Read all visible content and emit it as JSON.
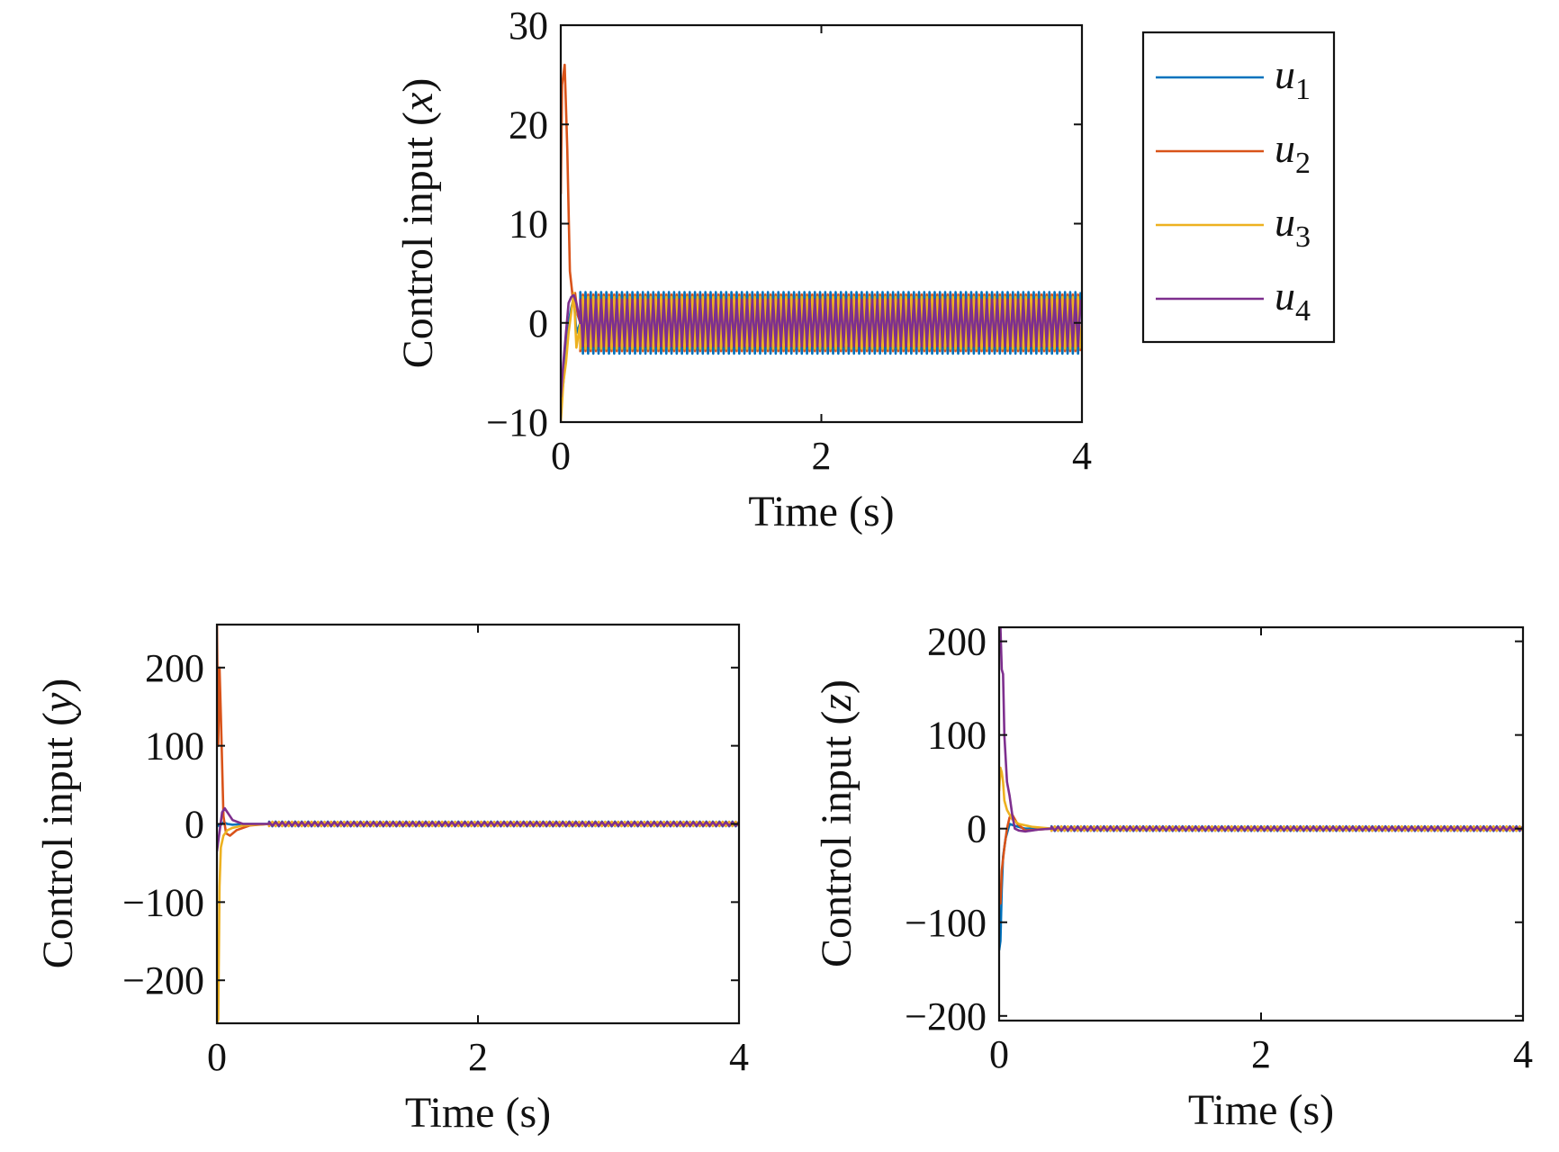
{
  "figure": {
    "legend": [
      {
        "name": "u",
        "sub": "1"
      },
      {
        "name": "u",
        "sub": "2"
      },
      {
        "name": "u",
        "sub": "3"
      },
      {
        "name": "u",
        "sub": "4"
      }
    ]
  },
  "chart_data": [
    {
      "type": "line",
      "id": "x",
      "title": "",
      "xlabel": "Time (s)",
      "ylabel_prefix": "Control input (",
      "ylabel_var": "x",
      "ylabel_suffix": ")",
      "xlim": [
        0,
        4
      ],
      "ylim": [
        -10,
        30
      ],
      "xticks": [
        0,
        2,
        4
      ],
      "xtick_labels": [
        "0",
        "2",
        "4"
      ],
      "yticks": [
        -10,
        0,
        10,
        20,
        30
      ],
      "ytick_labels": [
        "−10",
        "0",
        "10",
        "20",
        "30"
      ],
      "oscillation": {
        "t_start": 0.15,
        "t_end": 4,
        "amplitude": 3.1,
        "period": 0.04
      },
      "series": [
        {
          "name": "u1",
          "color": "#0072BD",
          "x": [
            0,
            0.02,
            0.04,
            0.06,
            0.08,
            0.1,
            0.12,
            0.15
          ],
          "y": [
            -8,
            -6,
            -3,
            0,
            1.5,
            2.5,
            -1,
            0
          ]
        },
        {
          "name": "u2",
          "color": "#D95319",
          "x": [
            0,
            0.01,
            0.03,
            0.05,
            0.07,
            0.09,
            0.11,
            0.13,
            0.15
          ],
          "y": [
            13,
            24,
            26,
            17.5,
            5.2,
            2.8,
            3,
            0.8,
            0
          ]
        },
        {
          "name": "u3",
          "color": "#EDB120",
          "x": [
            0,
            0.02,
            0.04,
            0.06,
            0.08,
            0.1,
            0.12,
            0.15
          ],
          "y": [
            -10,
            -6,
            -4,
            -1,
            1,
            3,
            -2.5,
            0
          ]
        },
        {
          "name": "u4",
          "color": "#7E2F8E",
          "x": [
            0,
            0.02,
            0.04,
            0.06,
            0.08,
            0.1,
            0.12,
            0.15
          ],
          "y": [
            -7.5,
            -4,
            -1,
            2,
            2.6,
            2.8,
            2,
            0
          ]
        }
      ]
    },
    {
      "type": "line",
      "id": "y",
      "title": "",
      "xlabel": "Time (s)",
      "ylabel_prefix": "Control input (",
      "ylabel_var": "y",
      "ylabel_suffix": ")",
      "xlim": [
        0,
        4
      ],
      "ylim": [
        -255,
        255
      ],
      "xticks": [
        0,
        2,
        4
      ],
      "xtick_labels": [
        "0",
        "2",
        "4"
      ],
      "yticks": [
        -200,
        -100,
        0,
        100,
        200
      ],
      "ytick_labels": [
        "−200",
        "−100",
        "0",
        "100",
        "200"
      ],
      "oscillation": {
        "t_start": 0.4,
        "t_end": 4,
        "amplitude": 3,
        "period": 0.05
      },
      "series": [
        {
          "name": "u1",
          "color": "#0072BD",
          "x": [
            0,
            0.02,
            0.05,
            0.08,
            0.12,
            0.2,
            0.4
          ],
          "y": [
            0,
            -3,
            2,
            0,
            -1,
            0,
            0
          ]
        },
        {
          "name": "u2",
          "color": "#D95319",
          "x": [
            0,
            0.01,
            0.02,
            0.03,
            0.05,
            0.07,
            0.1,
            0.15,
            0.25,
            0.4
          ],
          "y": [
            255,
            100,
            200,
            140,
            10,
            -12,
            -15,
            -8,
            -2,
            0
          ]
        },
        {
          "name": "u3",
          "color": "#EDB120",
          "x": [
            0,
            0.01,
            0.02,
            0.03,
            0.05,
            0.08,
            0.12,
            0.2,
            0.4
          ],
          "y": [
            -255,
            -250,
            -80,
            -30,
            -15,
            -8,
            -5,
            -2,
            0
          ]
        },
        {
          "name": "u4",
          "color": "#7E2F8E",
          "x": [
            0,
            0.02,
            0.04,
            0.06,
            0.08,
            0.12,
            0.2,
            0.4
          ],
          "y": [
            -35,
            -10,
            15,
            20,
            15,
            5,
            0,
            0
          ]
        }
      ]
    },
    {
      "type": "line",
      "id": "z",
      "title": "",
      "xlabel": "Time (s)",
      "ylabel_prefix": "Control input (",
      "ylabel_var": "z",
      "ylabel_suffix": ")",
      "xlim": [
        0,
        4
      ],
      "ylim": [
        -205,
        215
      ],
      "xticks": [
        0,
        2,
        4
      ],
      "xtick_labels": [
        "0",
        "2",
        "4"
      ],
      "yticks": [
        -200,
        -100,
        0,
        100,
        200
      ],
      "ytick_labels": [
        "−200",
        "−100",
        "0",
        "100",
        "200"
      ],
      "oscillation": {
        "t_start": 0.4,
        "t_end": 4,
        "amplitude": 2.5,
        "period": 0.05
      },
      "series": [
        {
          "name": "u1",
          "color": "#0072BD",
          "x": [
            0,
            0.01,
            0.02,
            0.03,
            0.05,
            0.08,
            0.12,
            0.2,
            0.4
          ],
          "y": [
            -130,
            -120,
            -65,
            -30,
            -10,
            5,
            3,
            0,
            0
          ]
        },
        {
          "name": "u2",
          "color": "#D95319",
          "x": [
            0,
            0.01,
            0.02,
            0.04,
            0.06,
            0.08,
            0.1,
            0.14,
            0.2,
            0.4
          ],
          "y": [
            -60,
            -80,
            -45,
            -20,
            0,
            12,
            15,
            5,
            -2,
            0
          ]
        },
        {
          "name": "u3",
          "color": "#EDB120",
          "x": [
            0,
            0.01,
            0.02,
            0.03,
            0.04,
            0.06,
            0.08,
            0.1,
            0.15,
            0.25,
            0.4
          ],
          "y": [
            40,
            65,
            60,
            50,
            30,
            20,
            15,
            10,
            5,
            2,
            0
          ]
        },
        {
          "name": "u4",
          "color": "#7E2F8E",
          "x": [
            0,
            0.01,
            0.02,
            0.03,
            0.04,
            0.06,
            0.08,
            0.1,
            0.12,
            0.15,
            0.2,
            0.3,
            0.4
          ],
          "y": [
            195,
            215,
            170,
            165,
            100,
            50,
            35,
            15,
            0,
            -2,
            -3,
            -1,
            0
          ]
        }
      ]
    }
  ]
}
